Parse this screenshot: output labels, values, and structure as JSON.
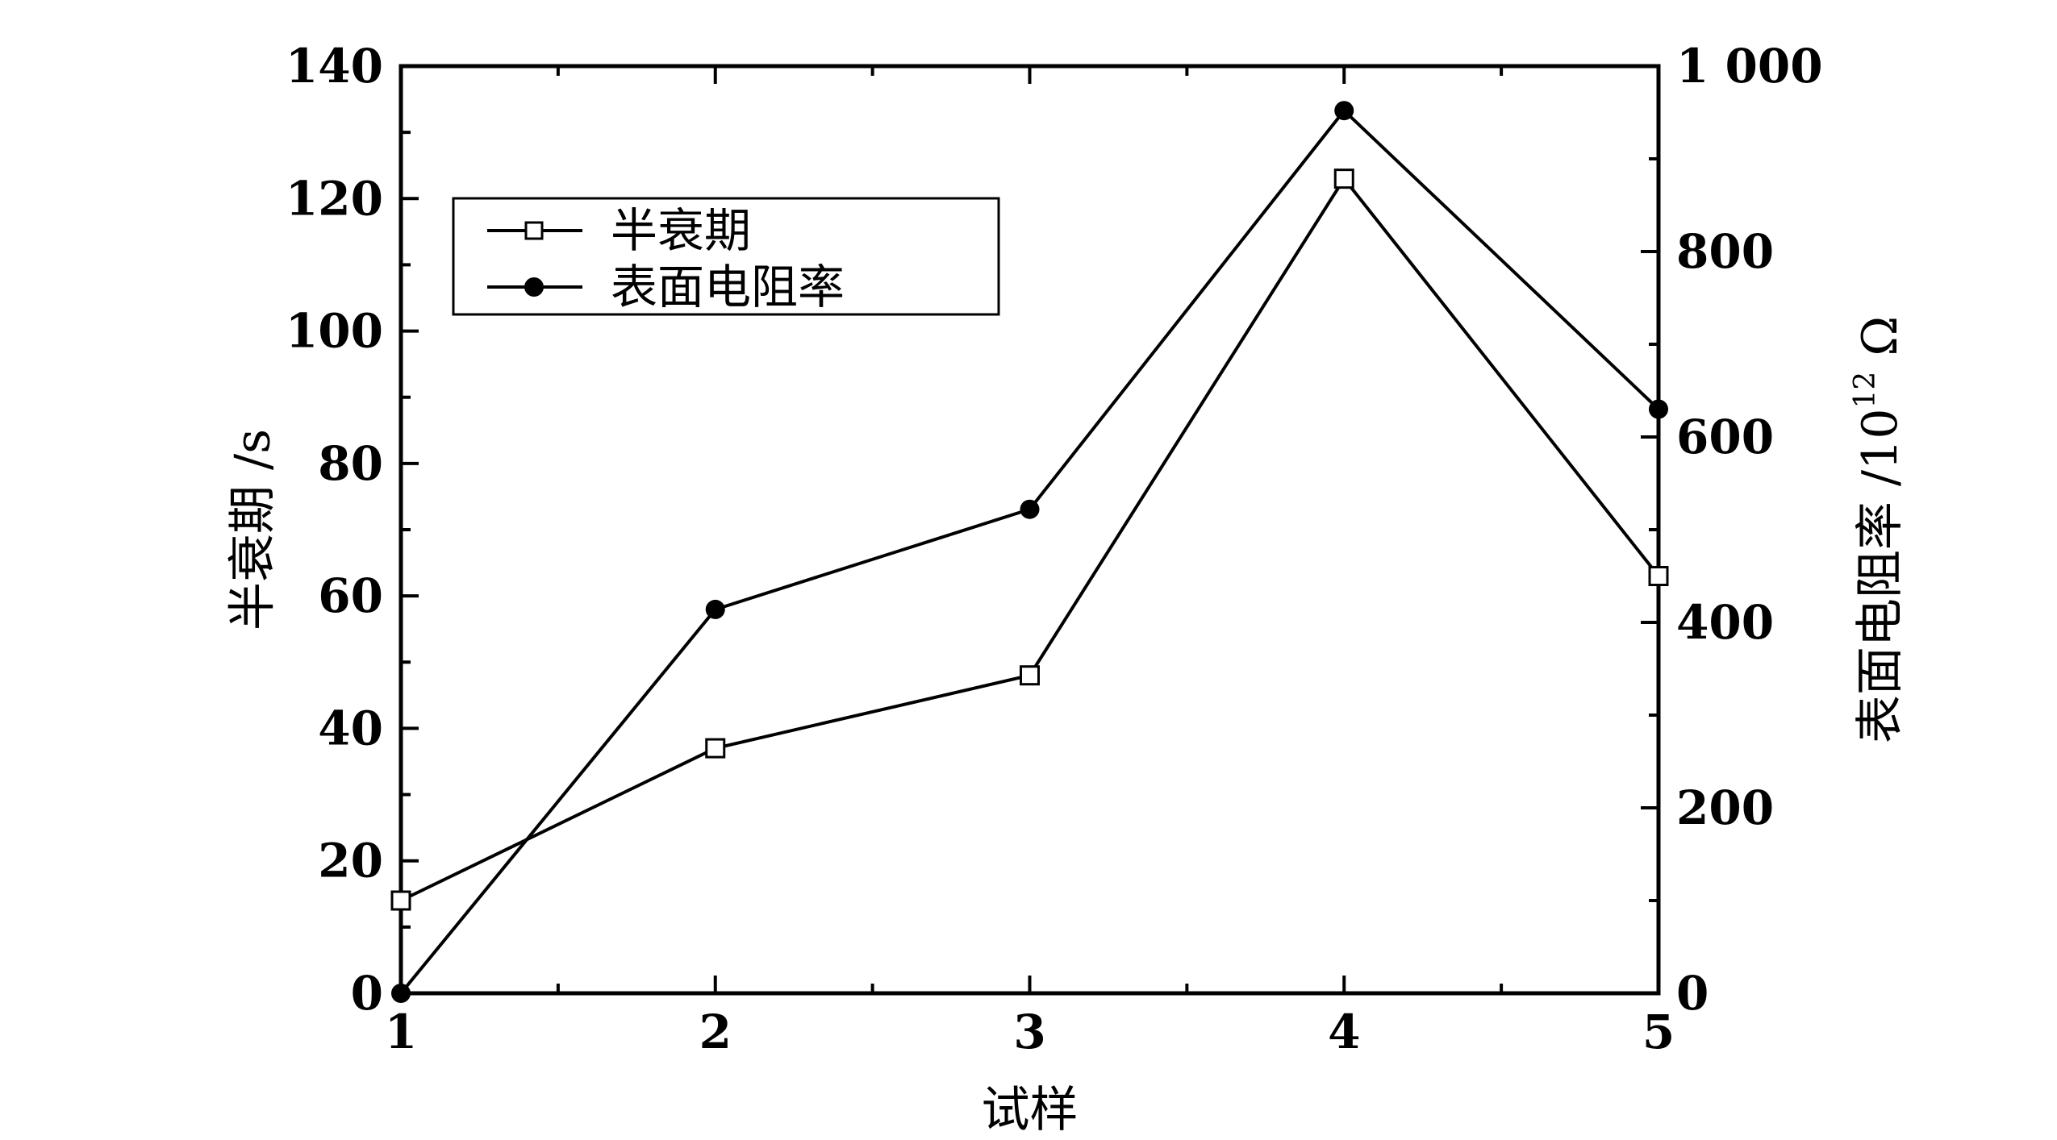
{
  "chart_data": {
    "type": "line",
    "x": [
      1,
      2,
      3,
      4,
      5
    ],
    "xlabel": "试样",
    "xlim": [
      1,
      5
    ],
    "x_ticks": [
      "1",
      "2",
      "3",
      "4",
      "5"
    ],
    "y_left": {
      "label": "半衰期 /s",
      "lim": [
        0,
        140
      ],
      "ticks": [
        "0",
        "20",
        "40",
        "60",
        "80",
        "100",
        "120",
        "140"
      ]
    },
    "y_right": {
      "label_main": "表面电阻率 /10",
      "label_sup": "12",
      "label_unit": " Ω",
      "lim": [
        0,
        1000
      ],
      "ticks": [
        "0",
        "200",
        "400",
        "600",
        "800",
        "1 000"
      ]
    },
    "series": [
      {
        "name": "半衰期",
        "axis": "left",
        "marker": "open-square",
        "values": [
          14,
          37,
          48,
          123,
          63
        ]
      },
      {
        "name": "表面电阻率",
        "axis": "right",
        "marker": "filled-circle",
        "values": [
          0,
          414,
          522,
          952,
          630
        ]
      }
    ],
    "legend": {
      "position": "top-left",
      "entries": [
        "半衰期",
        "表面电阻率"
      ]
    },
    "grid": false
  }
}
